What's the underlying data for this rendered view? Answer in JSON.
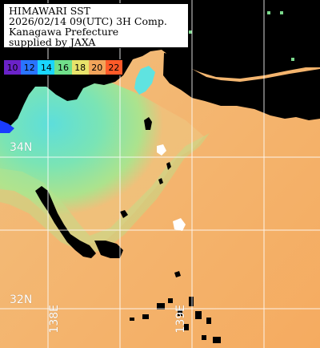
{
  "info": {
    "line1": "HIMAWARI SST",
    "line2": "2026/02/14 09(UTC) 3H Comp.",
    "line3": "Kanagawa Prefecture",
    "line4": "supplied by JAXA"
  },
  "legend": {
    "ticks": [
      "10",
      "12",
      "14",
      "16",
      "18",
      "20",
      "22"
    ],
    "colors": [
      "#6a22c8",
      "#2a74ff",
      "#19d6ff",
      "#70e08a",
      "#e8e36a",
      "#f2a45a",
      "#ff5a28"
    ]
  },
  "grid_labels": {
    "lat_34": "34N",
    "lat_32": "32N",
    "lon_138": "138E",
    "lon_139": "139E"
  },
  "colors": {
    "land": "#000000",
    "cloud": "#ffffff",
    "grid": "#ffffff",
    "warm_sea": "#f4b36c",
    "cool_sea": "#5fe3d0"
  }
}
